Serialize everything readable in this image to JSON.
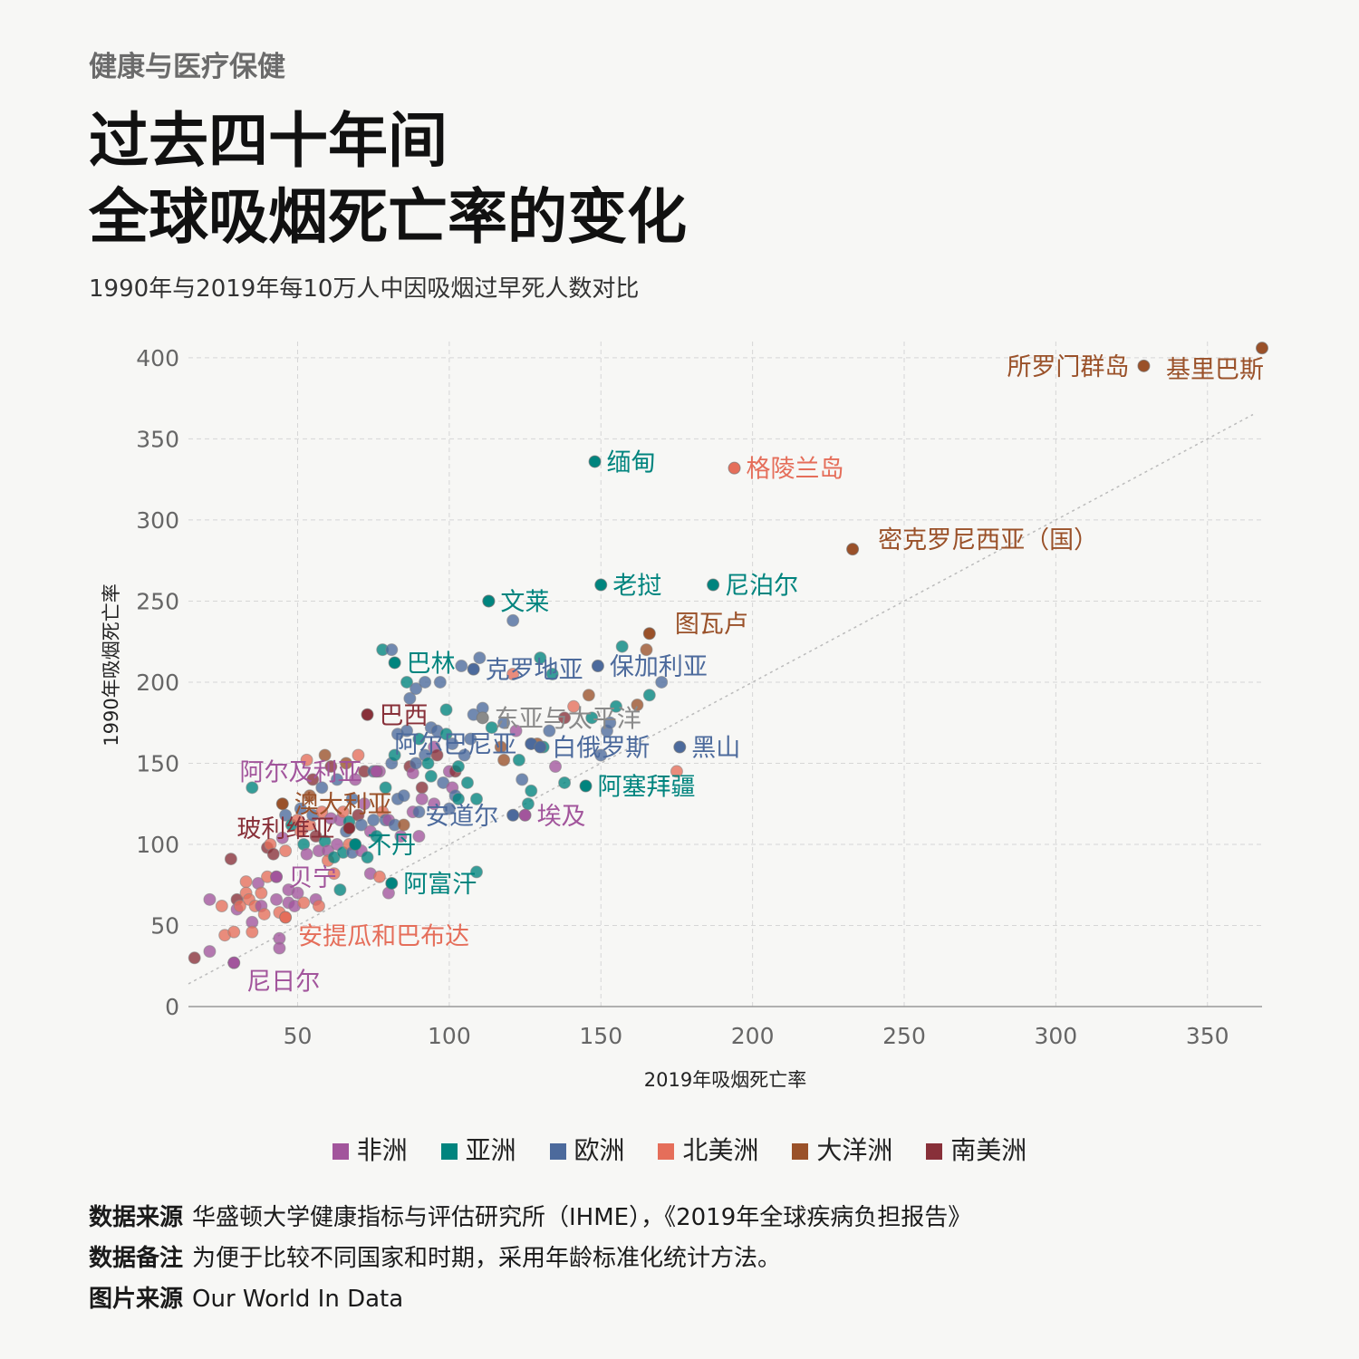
{
  "header": {
    "kicker": "健康与医疗保健",
    "title_line1": "过去四十年间",
    "title_line2": "全球吸烟死亡率的变化",
    "subtitle": "1990年与2019年每10万人中因吸烟过早死人数对比"
  },
  "colors": {
    "africa": "#a2559c",
    "asia": "#00847e",
    "europe": "#4c6a9c",
    "north_america": "#e56e5a",
    "oceania": "#9a5129",
    "south_america": "#883039",
    "world": "#8a8a8a"
  },
  "legend": [
    {
      "label": "非洲",
      "color": "#a2559c"
    },
    {
      "label": "亚洲",
      "color": "#00847e"
    },
    {
      "label": "欧洲",
      "color": "#4c6a9c"
    },
    {
      "label": "北美洲",
      "color": "#e56e5a"
    },
    {
      "label": "大洋洲",
      "color": "#9a5129"
    },
    {
      "label": "南美洲",
      "color": "#883039"
    }
  ],
  "footer": {
    "source_label": "数据来源",
    "source_text": "华盛顿大学健康指标与评估研究所（IHME），《2019年全球疾病负担报告》",
    "note_label": "数据备注",
    "note_text": "为便于比较不同国家和时期，采用年龄标准化统计方法。",
    "image_label": "图片来源",
    "image_text": "Our World In Data"
  },
  "chart_data": {
    "type": "scatter",
    "xlabel": "2019年吸烟死亡率",
    "ylabel": "1990年吸烟死亡率",
    "xlim": [
      14,
      368
    ],
    "ylim": [
      0,
      410
    ],
    "xticks": [
      50,
      100,
      150,
      200,
      250,
      300,
      350
    ],
    "yticks": [
      0,
      50,
      100,
      150,
      200,
      250,
      300,
      350,
      400
    ],
    "grid": true,
    "diagonal_reference": true,
    "legend_position": "bottom",
    "labeled_points": [
      {
        "label": "基里巴斯",
        "x": 368,
        "y": 406,
        "region": "oceania",
        "label_side": "left-below"
      },
      {
        "label": "所罗门群岛",
        "x": 329,
        "y": 395,
        "region": "oceania",
        "label_side": "left"
      },
      {
        "label": "缅甸",
        "x": 148,
        "y": 336,
        "region": "asia",
        "label_side": "right"
      },
      {
        "label": "格陵兰岛",
        "x": 194,
        "y": 332,
        "region": "north_america",
        "label_side": "right"
      },
      {
        "label": "密克罗尼西亚（国）",
        "x": 233,
        "y": 282,
        "region": "oceania",
        "label_side": "right-up"
      },
      {
        "label": "老挝",
        "x": 150,
        "y": 260,
        "region": "asia",
        "label_side": "right"
      },
      {
        "label": "尼泊尔",
        "x": 187,
        "y": 260,
        "region": "asia",
        "label_side": "right"
      },
      {
        "label": "文莱",
        "x": 113,
        "y": 250,
        "region": "asia",
        "label_side": "right"
      },
      {
        "label": "图瓦卢",
        "x": 166,
        "y": 230,
        "region": "oceania",
        "label_side": "right-up"
      },
      {
        "label": "巴林",
        "x": 82,
        "y": 212,
        "region": "asia",
        "label_side": "right"
      },
      {
        "label": "克罗地亚",
        "x": 108,
        "y": 208,
        "region": "europe",
        "label_side": "right"
      },
      {
        "label": "保加利亚",
        "x": 149,
        "y": 210,
        "region": "europe",
        "label_side": "right"
      },
      {
        "label": "东亚与太平洋",
        "x": 111,
        "y": 178,
        "region": "world",
        "label_side": "right"
      },
      {
        "label": "巴西",
        "x": 73,
        "y": 180,
        "region": "south_america",
        "label_side": "right"
      },
      {
        "label": "阿尔巴尼亚",
        "x": 127,
        "y": 162,
        "region": "europe",
        "label_side": "left"
      },
      {
        "label": "白俄罗斯",
        "x": 130,
        "y": 160,
        "region": "europe",
        "label_side": "right"
      },
      {
        "label": "黑山",
        "x": 176,
        "y": 160,
        "region": "europe",
        "label_side": "right"
      },
      {
        "label": "阿尔及利亚",
        "x": 76,
        "y": 145,
        "region": "africa",
        "label_side": "left"
      },
      {
        "label": "阿塞拜疆",
        "x": 145,
        "y": 136,
        "region": "asia",
        "label_side": "right"
      },
      {
        "label": "澳大利亚",
        "x": 45,
        "y": 125,
        "region": "oceania",
        "label_side": "right"
      },
      {
        "label": "安道尔",
        "x": 121,
        "y": 118,
        "region": "europe",
        "label_side": "left"
      },
      {
        "label": "埃及",
        "x": 125,
        "y": 118,
        "region": "africa",
        "label_side": "right"
      },
      {
        "label": "玻利维亚",
        "x": 67,
        "y": 110,
        "region": "south_america",
        "label_side": "left"
      },
      {
        "label": "不丹",
        "x": 69,
        "y": 100,
        "region": "asia",
        "label_side": "right"
      },
      {
        "label": "贝宁",
        "x": 43,
        "y": 80,
        "region": "africa",
        "label_side": "right"
      },
      {
        "label": "阿富汗",
        "x": 81,
        "y": 76,
        "region": "asia",
        "label_side": "right"
      },
      {
        "label": "安提瓜和巴布达",
        "x": 46,
        "y": 55,
        "region": "north_america",
        "label_side": "right-below"
      },
      {
        "label": "尼日尔",
        "x": 29,
        "y": 27,
        "region": "africa",
        "label_side": "right-below"
      }
    ],
    "points": [
      [
        16,
        30,
        "south_america"
      ],
      [
        21,
        66,
        "africa"
      ],
      [
        21,
        34,
        "africa"
      ],
      [
        25,
        62,
        "north_america"
      ],
      [
        26,
        44,
        "north_america"
      ],
      [
        28,
        91,
        "south_america"
      ],
      [
        29,
        46,
        "north_america"
      ],
      [
        30,
        66,
        "south_america"
      ],
      [
        30,
        60,
        "africa"
      ],
      [
        31,
        62,
        "north_america"
      ],
      [
        33,
        77,
        "north_america"
      ],
      [
        33,
        70,
        "north_america"
      ],
      [
        34,
        66,
        "north_america"
      ],
      [
        35,
        135,
        "asia"
      ],
      [
        35,
        52,
        "africa"
      ],
      [
        35,
        46,
        "north_america"
      ],
      [
        36,
        62,
        "north_america"
      ],
      [
        37,
        76,
        "africa"
      ],
      [
        38,
        70,
        "north_america"
      ],
      [
        38,
        62,
        "africa"
      ],
      [
        39,
        57,
        "north_america"
      ],
      [
        40,
        80,
        "north_america"
      ],
      [
        40,
        98,
        "south_america"
      ],
      [
        41,
        100,
        "north_america"
      ],
      [
        42,
        94,
        "south_america"
      ],
      [
        43,
        66,
        "africa"
      ],
      [
        44,
        58,
        "north_america"
      ],
      [
        44,
        42,
        "africa"
      ],
      [
        44,
        36,
        "africa"
      ],
      [
        45,
        104,
        "africa"
      ],
      [
        46,
        118,
        "europe"
      ],
      [
        46,
        96,
        "north_america"
      ],
      [
        47,
        72,
        "africa"
      ],
      [
        47,
        64,
        "africa"
      ],
      [
        48,
        112,
        "asia"
      ],
      [
        49,
        62,
        "africa"
      ],
      [
        50,
        70,
        "africa"
      ],
      [
        50,
        115,
        "north_america"
      ],
      [
        51,
        122,
        "europe"
      ],
      [
        51,
        108,
        "north_america"
      ],
      [
        52,
        100,
        "asia"
      ],
      [
        52,
        64,
        "north_america"
      ],
      [
        53,
        94,
        "africa"
      ],
      [
        53,
        152,
        "north_america"
      ],
      [
        54,
        112,
        "north_america"
      ],
      [
        54,
        130,
        "oceania"
      ],
      [
        55,
        140,
        "south_america"
      ],
      [
        55,
        118,
        "europe"
      ],
      [
        56,
        105,
        "south_america"
      ],
      [
        56,
        66,
        "africa"
      ],
      [
        57,
        96,
        "africa"
      ],
      [
        57,
        62,
        "north_america"
      ],
      [
        58,
        120,
        "north_america"
      ],
      [
        58,
        135,
        "europe"
      ],
      [
        59,
        155,
        "oceania"
      ],
      [
        59,
        102,
        "asia"
      ],
      [
        60,
        96,
        "africa"
      ],
      [
        60,
        90,
        "north_america"
      ],
      [
        61,
        116,
        "africa"
      ],
      [
        61,
        148,
        "south_america"
      ],
      [
        62,
        92,
        "asia"
      ],
      [
        62,
        82,
        "north_america"
      ],
      [
        63,
        100,
        "africa"
      ],
      [
        63,
        140,
        "europe"
      ],
      [
        64,
        72,
        "asia"
      ],
      [
        64,
        115,
        "africa"
      ],
      [
        65,
        120,
        "north_america"
      ],
      [
        65,
        95,
        "asia"
      ],
      [
        66,
        150,
        "oceania"
      ],
      [
        66,
        108,
        "europe"
      ],
      [
        67,
        114,
        "asia"
      ],
      [
        67,
        100,
        "north_america"
      ],
      [
        68,
        128,
        "europe"
      ],
      [
        68,
        95,
        "europe"
      ],
      [
        69,
        140,
        "africa"
      ],
      [
        70,
        155,
        "north_america"
      ],
      [
        70,
        118,
        "south_america"
      ],
      [
        71,
        112,
        "europe"
      ],
      [
        71,
        96,
        "africa"
      ],
      [
        72,
        145,
        "south_america"
      ],
      [
        72,
        125,
        "africa"
      ],
      [
        73,
        92,
        "asia"
      ],
      [
        74,
        108,
        "africa"
      ],
      [
        74,
        82,
        "africa"
      ],
      [
        75,
        145,
        "europe"
      ],
      [
        75,
        115,
        "europe"
      ],
      [
        76,
        105,
        "asia"
      ],
      [
        77,
        145,
        "africa"
      ],
      [
        77,
        80,
        "north_america"
      ],
      [
        78,
        120,
        "north_america"
      ],
      [
        78,
        220,
        "asia"
      ],
      [
        79,
        115,
        "europe"
      ],
      [
        79,
        135,
        "asia"
      ],
      [
        80,
        115,
        "africa"
      ],
      [
        80,
        70,
        "africa"
      ],
      [
        81,
        150,
        "europe"
      ],
      [
        81,
        220,
        "europe"
      ],
      [
        82,
        112,
        "europe"
      ],
      [
        82,
        155,
        "asia"
      ],
      [
        83,
        128,
        "europe"
      ],
      [
        83,
        168,
        "europe"
      ],
      [
        84,
        105,
        "africa"
      ],
      [
        85,
        112,
        "oceania"
      ],
      [
        85,
        130,
        "europe"
      ],
      [
        86,
        170,
        "europe"
      ],
      [
        86,
        200,
        "asia"
      ],
      [
        87,
        148,
        "south_america"
      ],
      [
        87,
        190,
        "europe"
      ],
      [
        88,
        120,
        "africa"
      ],
      [
        88,
        144,
        "africa"
      ],
      [
        89,
        196,
        "europe"
      ],
      [
        89,
        150,
        "europe"
      ],
      [
        90,
        120,
        "europe"
      ],
      [
        90,
        105,
        "africa"
      ],
      [
        90,
        165,
        "asia"
      ],
      [
        91,
        135,
        "south_america"
      ],
      [
        91,
        128,
        "africa"
      ],
      [
        92,
        200,
        "europe"
      ],
      [
        92,
        155,
        "europe"
      ],
      [
        93,
        150,
        "asia"
      ],
      [
        94,
        142,
        "asia"
      ],
      [
        94,
        172,
        "europe"
      ],
      [
        95,
        125,
        "africa"
      ],
      [
        95,
        160,
        "africa"
      ],
      [
        96,
        155,
        "south_america"
      ],
      [
        96,
        170,
        "europe"
      ],
      [
        97,
        200,
        "europe"
      ],
      [
        98,
        138,
        "europe"
      ],
      [
        99,
        168,
        "asia"
      ],
      [
        99,
        183,
        "asia"
      ],
      [
        100,
        122,
        "europe"
      ],
      [
        100,
        145,
        "africa"
      ],
      [
        101,
        135,
        "africa"
      ],
      [
        101,
        162,
        "europe"
      ],
      [
        102,
        130,
        "europe"
      ],
      [
        102,
        145,
        "south_america"
      ],
      [
        103,
        148,
        "asia"
      ],
      [
        103,
        128,
        "asia"
      ],
      [
        104,
        210,
        "europe"
      ],
      [
        105,
        155,
        "europe"
      ],
      [
        106,
        138,
        "asia"
      ],
      [
        107,
        165,
        "europe"
      ],
      [
        108,
        180,
        "europe"
      ],
      [
        109,
        83,
        "asia"
      ],
      [
        109,
        128,
        "asia"
      ],
      [
        110,
        215,
        "europe"
      ],
      [
        111,
        184,
        "europe"
      ],
      [
        113,
        250,
        "asia"
      ],
      [
        114,
        172,
        "asia"
      ],
      [
        117,
        160,
        "oceania"
      ],
      [
        118,
        152,
        "oceania"
      ],
      [
        118,
        175,
        "europe"
      ],
      [
        121,
        238,
        "europe"
      ],
      [
        121,
        205,
        "north_america"
      ],
      [
        122,
        170,
        "africa"
      ],
      [
        123,
        152,
        "asia"
      ],
      [
        124,
        140,
        "europe"
      ],
      [
        126,
        125,
        "asia"
      ],
      [
        127,
        133,
        "asia"
      ],
      [
        129,
        162,
        "oceania"
      ],
      [
        130,
        215,
        "asia"
      ],
      [
        131,
        160,
        "asia"
      ],
      [
        133,
        170,
        "europe"
      ],
      [
        134,
        205,
        "asia"
      ],
      [
        135,
        148,
        "africa"
      ],
      [
        138,
        138,
        "asia"
      ],
      [
        138,
        178,
        "south_america"
      ],
      [
        141,
        185,
        "north_america"
      ],
      [
        146,
        192,
        "oceania"
      ],
      [
        147,
        178,
        "asia"
      ],
      [
        150,
        155,
        "europe"
      ],
      [
        152,
        170,
        "europe"
      ],
      [
        153,
        175,
        "europe"
      ],
      [
        155,
        185,
        "asia"
      ],
      [
        157,
        222,
        "asia"
      ],
      [
        162,
        186,
        "oceania"
      ],
      [
        165,
        220,
        "oceania"
      ],
      [
        166,
        192,
        "asia"
      ],
      [
        170,
        200,
        "europe"
      ],
      [
        175,
        145,
        "north_america"
      ]
    ]
  }
}
